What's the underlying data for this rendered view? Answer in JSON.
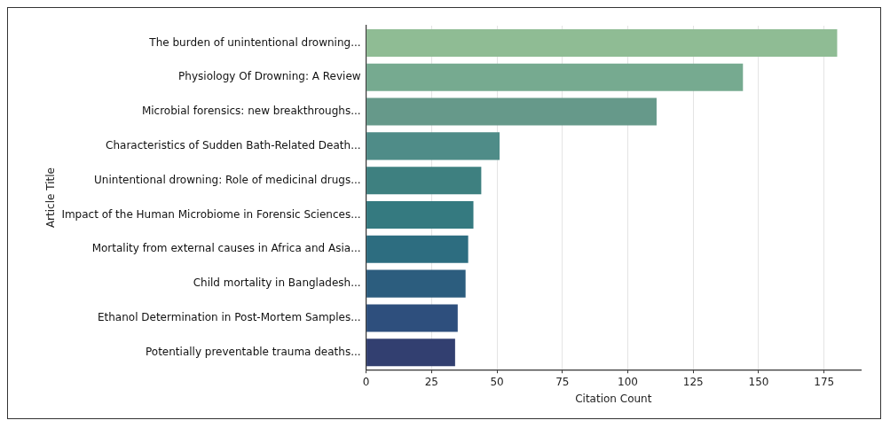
{
  "chart_data": {
    "type": "bar",
    "orientation": "horizontal",
    "xlabel": "Citation Count",
    "ylabel": "Article Title",
    "categories": [
      "The burden of unintentional drowning...",
      "Physiology Of Drowning: A Review",
      "Microbial forensics: new breakthroughs...",
      "Characteristics of Sudden Bath-Related Death...",
      "Unintentional drowning: Role of medicinal drugs...",
      "Impact of the Human Microbiome in Forensic Sciences...",
      "Mortality from external causes in Africa and Asia...",
      "Child mortality in Bangladesh...",
      "Ethanol Determination in Post-Mortem Samples...",
      "Potentially preventable trauma deaths..."
    ],
    "values": [
      180,
      144,
      111,
      51,
      44,
      41,
      39,
      38,
      35,
      34
    ],
    "colors": [
      "#8fbc94",
      "#76aa90",
      "#66998a",
      "#4f8c88",
      "#3e8080",
      "#357a80",
      "#2d6d80",
      "#2c5d7e",
      "#2e4f7d",
      "#323f70"
    ],
    "xlim": [
      0,
      189
    ],
    "xticks": [
      0,
      25,
      50,
      75,
      100,
      125,
      150,
      175
    ],
    "grid": "x",
    "legend": false
  }
}
